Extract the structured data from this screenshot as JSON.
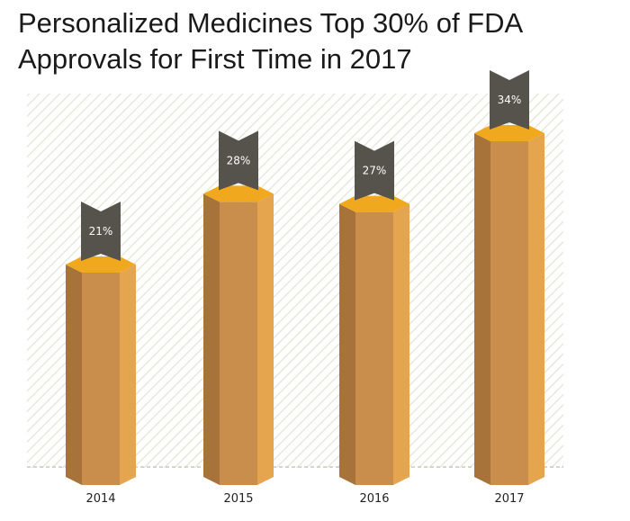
{
  "title_lines": [
    "Personalized Medicines Top 30% of FDA",
    "Approvals for First Time in 2017"
  ],
  "colors": {
    "bar_front": "#c98e4c",
    "bar_left": "#a8733a",
    "bar_right": "#e5a54f",
    "bar_top": "#f0a81e",
    "tag": "#55534c",
    "hatch": "#e4e4d6",
    "baseline": "#c8c8bc"
  },
  "chart_data": {
    "type": "bar",
    "title": "Personalized Medicines Top 30% of FDA Approvals for First Time in 2017",
    "categories": [
      "2014",
      "2015",
      "2016",
      "2017"
    ],
    "values": [
      21,
      28,
      27,
      34
    ],
    "labels": [
      "21%",
      "28%",
      "27%",
      "34%"
    ],
    "ylim": [
      0,
      34
    ],
    "xlabel": "",
    "ylabel": "",
    "grid": false,
    "legend": "none"
  }
}
